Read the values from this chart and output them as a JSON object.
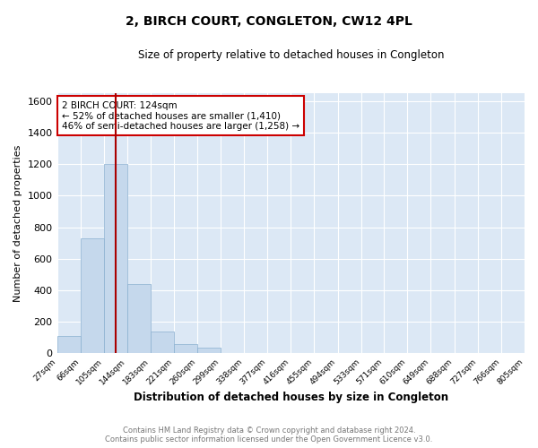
{
  "title": "2, BIRCH COURT, CONGLETON, CW12 4PL",
  "subtitle": "Size of property relative to detached houses in Congleton",
  "xlabel": "Distribution of detached houses by size in Congleton",
  "ylabel": "Number of detached properties",
  "bar_color": "#c5d8ec",
  "bar_edge_color": "#8ab0d0",
  "background_color": "#ffffff",
  "plot_bg_color": "#dce8f5",
  "grid_color": "#ffffff",
  "annotation_box_color": "#ffffff",
  "annotation_box_edge": "#cc0000",
  "marker_line_color": "#aa0000",
  "footer_line1": "Contains HM Land Registry data © Crown copyright and database right 2024.",
  "footer_line2": "Contains public sector information licensed under the Open Government Licence v3.0.",
  "annotation_title": "2 BIRCH COURT: 124sqm",
  "annotation_line1": "← 52% of detached houses are smaller (1,410)",
  "annotation_line2": "46% of semi-detached houses are larger (1,258) →",
  "property_size_sqm": 124,
  "bin_edges": [
    27,
    66,
    105,
    144,
    183,
    221,
    260,
    299,
    338,
    377,
    416,
    455,
    494,
    533,
    571,
    610,
    649,
    688,
    727,
    766,
    805
  ],
  "bin_labels": [
    "27sqm",
    "66sqm",
    "105sqm",
    "144sqm",
    "183sqm",
    "221sqm",
    "260sqm",
    "299sqm",
    "338sqm",
    "377sqm",
    "416sqm",
    "455sqm",
    "494sqm",
    "533sqm",
    "571sqm",
    "610sqm",
    "649sqm",
    "688sqm",
    "727sqm",
    "766sqm",
    "805sqm"
  ],
  "bar_heights": [
    110,
    730,
    1200,
    440,
    140,
    60,
    35,
    0,
    0,
    0,
    0,
    0,
    0,
    0,
    0,
    0,
    0,
    0,
    0,
    0
  ],
  "ylim": [
    0,
    1650
  ],
  "yticks": [
    0,
    200,
    400,
    600,
    800,
    1000,
    1200,
    1400,
    1600
  ],
  "figsize": [
    6.0,
    5.0
  ],
  "dpi": 100
}
